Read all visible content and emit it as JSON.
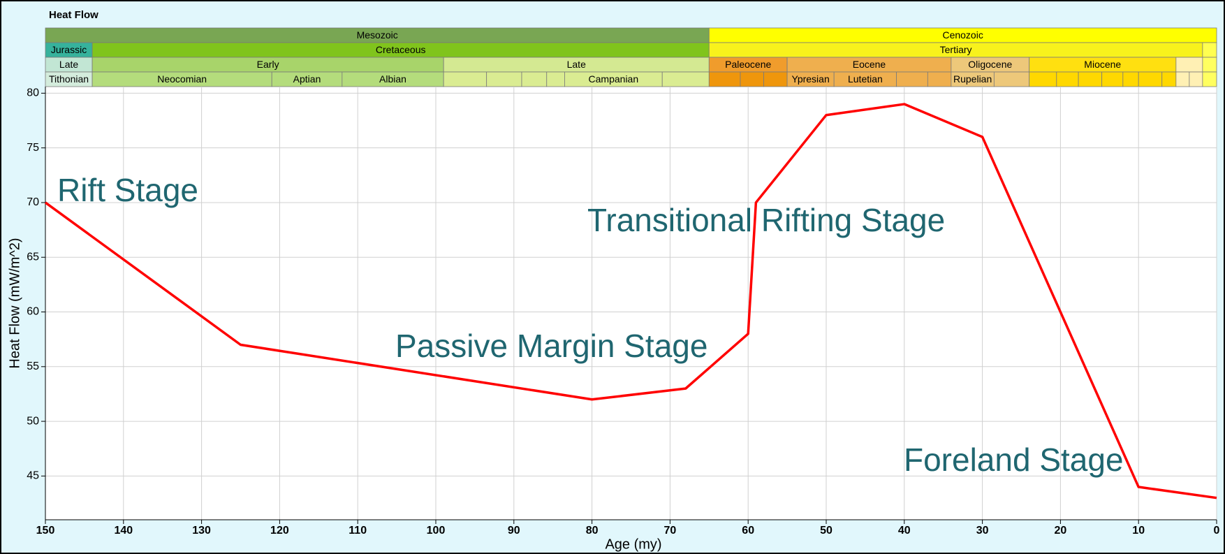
{
  "chart_data": {
    "type": "line",
    "title": "Heat Flow",
    "x_label": "Age (my)",
    "y_label": "Heat Flow (mW/m^2)",
    "x": [
      150,
      125,
      80,
      68,
      60,
      59,
      50,
      40,
      30,
      10,
      0
    ],
    "series": [
      {
        "color": "#ff0000",
        "values": [
          70,
          57,
          52,
          53,
          58,
          70,
          78,
          79,
          76,
          44,
          43
        ]
      }
    ],
    "xlim": [
      150,
      0
    ],
    "ylim": [
      41,
      80.6
    ],
    "xticks": [
      150,
      140,
      130,
      120,
      110,
      100,
      90,
      80,
      70,
      60,
      50,
      40,
      30,
      20,
      10,
      0
    ],
    "yticks": [
      45,
      50,
      55,
      60,
      65,
      70,
      75,
      80
    ],
    "grid": true,
    "annotations": [
      "Rift Stage",
      "Passive Margin Stage",
      "Transitional Rifting Stage",
      "Foreland Stage"
    ],
    "timescale": [
      [
        {
          "label": "Mesozoic",
          "start": 150,
          "end": 65,
          "color": "#79a653"
        },
        {
          "label": "Cenozoic",
          "start": 65,
          "end": 0,
          "color": "#ffff00"
        }
      ],
      [
        {
          "label": "Jurassic",
          "start": 150,
          "end": 144,
          "color": "#36b29c"
        },
        {
          "label": "Cretaceous",
          "start": 144,
          "end": 65,
          "color": "#80c41c"
        },
        {
          "label": "Tertiary",
          "start": 65,
          "end": 1.8,
          "color": "#f8f21c"
        },
        {
          "label": null,
          "start": 1.8,
          "end": 0,
          "color": "#ffff50"
        }
      ],
      [
        {
          "label": "Late",
          "start": 150,
          "end": 144,
          "color": "#c2e6d4"
        },
        {
          "label": "Early",
          "start": 144,
          "end": 99,
          "color": "#a8d46a"
        },
        {
          "label": "Late",
          "start": 99,
          "end": 65,
          "color": "#d4e992"
        },
        {
          "label": "Paleocene",
          "start": 65,
          "end": 55,
          "color": "#f09c2c"
        },
        {
          "label": "Eocene",
          "start": 55,
          "end": 34,
          "color": "#efaf4e"
        },
        {
          "label": "Oligocene",
          "start": 34,
          "end": 24,
          "color": "#edc87a"
        },
        {
          "label": "Miocene",
          "start": 24,
          "end": 5.2,
          "color": "#ffe010"
        },
        {
          "label": null,
          "start": 5.2,
          "end": 1.8,
          "color": "#fff0b4"
        },
        {
          "label": null,
          "start": 1.8,
          "end": 0,
          "color": "#ffff60"
        }
      ],
      [
        {
          "label": "Tithonian",
          "start": 150,
          "end": 144,
          "color": "#d4ecdc"
        },
        {
          "label": "Neocomian",
          "start": 144,
          "end": 121,
          "color": "#b4dc7c"
        },
        {
          "label": "Aptian",
          "start": 121,
          "end": 112,
          "color": "#b4dc7c"
        },
        {
          "label": "Albian",
          "start": 112,
          "end": 99,
          "color": "#b4dc7c"
        },
        {
          "label": null,
          "start": 99,
          "end": 93.5,
          "color": "#daec92"
        },
        {
          "label": null,
          "start": 93.5,
          "end": 89,
          "color": "#daec92"
        },
        {
          "label": null,
          "start": 89,
          "end": 85.8,
          "color": "#daec92"
        },
        {
          "label": null,
          "start": 85.8,
          "end": 83.5,
          "color": "#daec92"
        },
        {
          "label": "Campanian",
          "start": 83.5,
          "end": 71,
          "color": "#daec92"
        },
        {
          "label": null,
          "start": 71,
          "end": 65,
          "color": "#daec92"
        },
        {
          "label": null,
          "start": 65,
          "end": 61,
          "color": "#ef960c"
        },
        {
          "label": null,
          "start": 61,
          "end": 58,
          "color": "#ef960c"
        },
        {
          "label": null,
          "start": 58,
          "end": 55,
          "color": "#ef960c"
        },
        {
          "label": "Ypresian",
          "start": 55,
          "end": 49,
          "color": "#efaf4e"
        },
        {
          "label": "Lutetian",
          "start": 49,
          "end": 41,
          "color": "#efaf4e"
        },
        {
          "label": null,
          "start": 41,
          "end": 37,
          "color": "#efaf4e"
        },
        {
          "label": null,
          "start": 37,
          "end": 34,
          "color": "#efaf4e"
        },
        {
          "label": "Rupelian",
          "start": 34,
          "end": 28.5,
          "color": "#edc87a"
        },
        {
          "label": null,
          "start": 28.5,
          "end": 24,
          "color": "#edc87a"
        },
        {
          "label": null,
          "start": 24,
          "end": 20.5,
          "color": "#ffd800"
        },
        {
          "label": null,
          "start": 20.5,
          "end": 17.7,
          "color": "#ffd800"
        },
        {
          "label": null,
          "start": 17.7,
          "end": 14.7,
          "color": "#ffd800"
        },
        {
          "label": null,
          "start": 14.7,
          "end": 12,
          "color": "#ffd800"
        },
        {
          "label": null,
          "start": 12,
          "end": 10,
          "color": "#ffd800"
        },
        {
          "label": null,
          "start": 10,
          "end": 7,
          "color": "#ffd800"
        },
        {
          "label": null,
          "start": 7,
          "end": 5.2,
          "color": "#ffd800"
        },
        {
          "label": null,
          "start": 5.2,
          "end": 3.5,
          "color": "#fff0b4"
        },
        {
          "label": null,
          "start": 3.5,
          "end": 1.8,
          "color": "#fff0b4"
        },
        {
          "label": null,
          "start": 1.8,
          "end": 0,
          "color": "#ffff60"
        }
      ]
    ]
  }
}
